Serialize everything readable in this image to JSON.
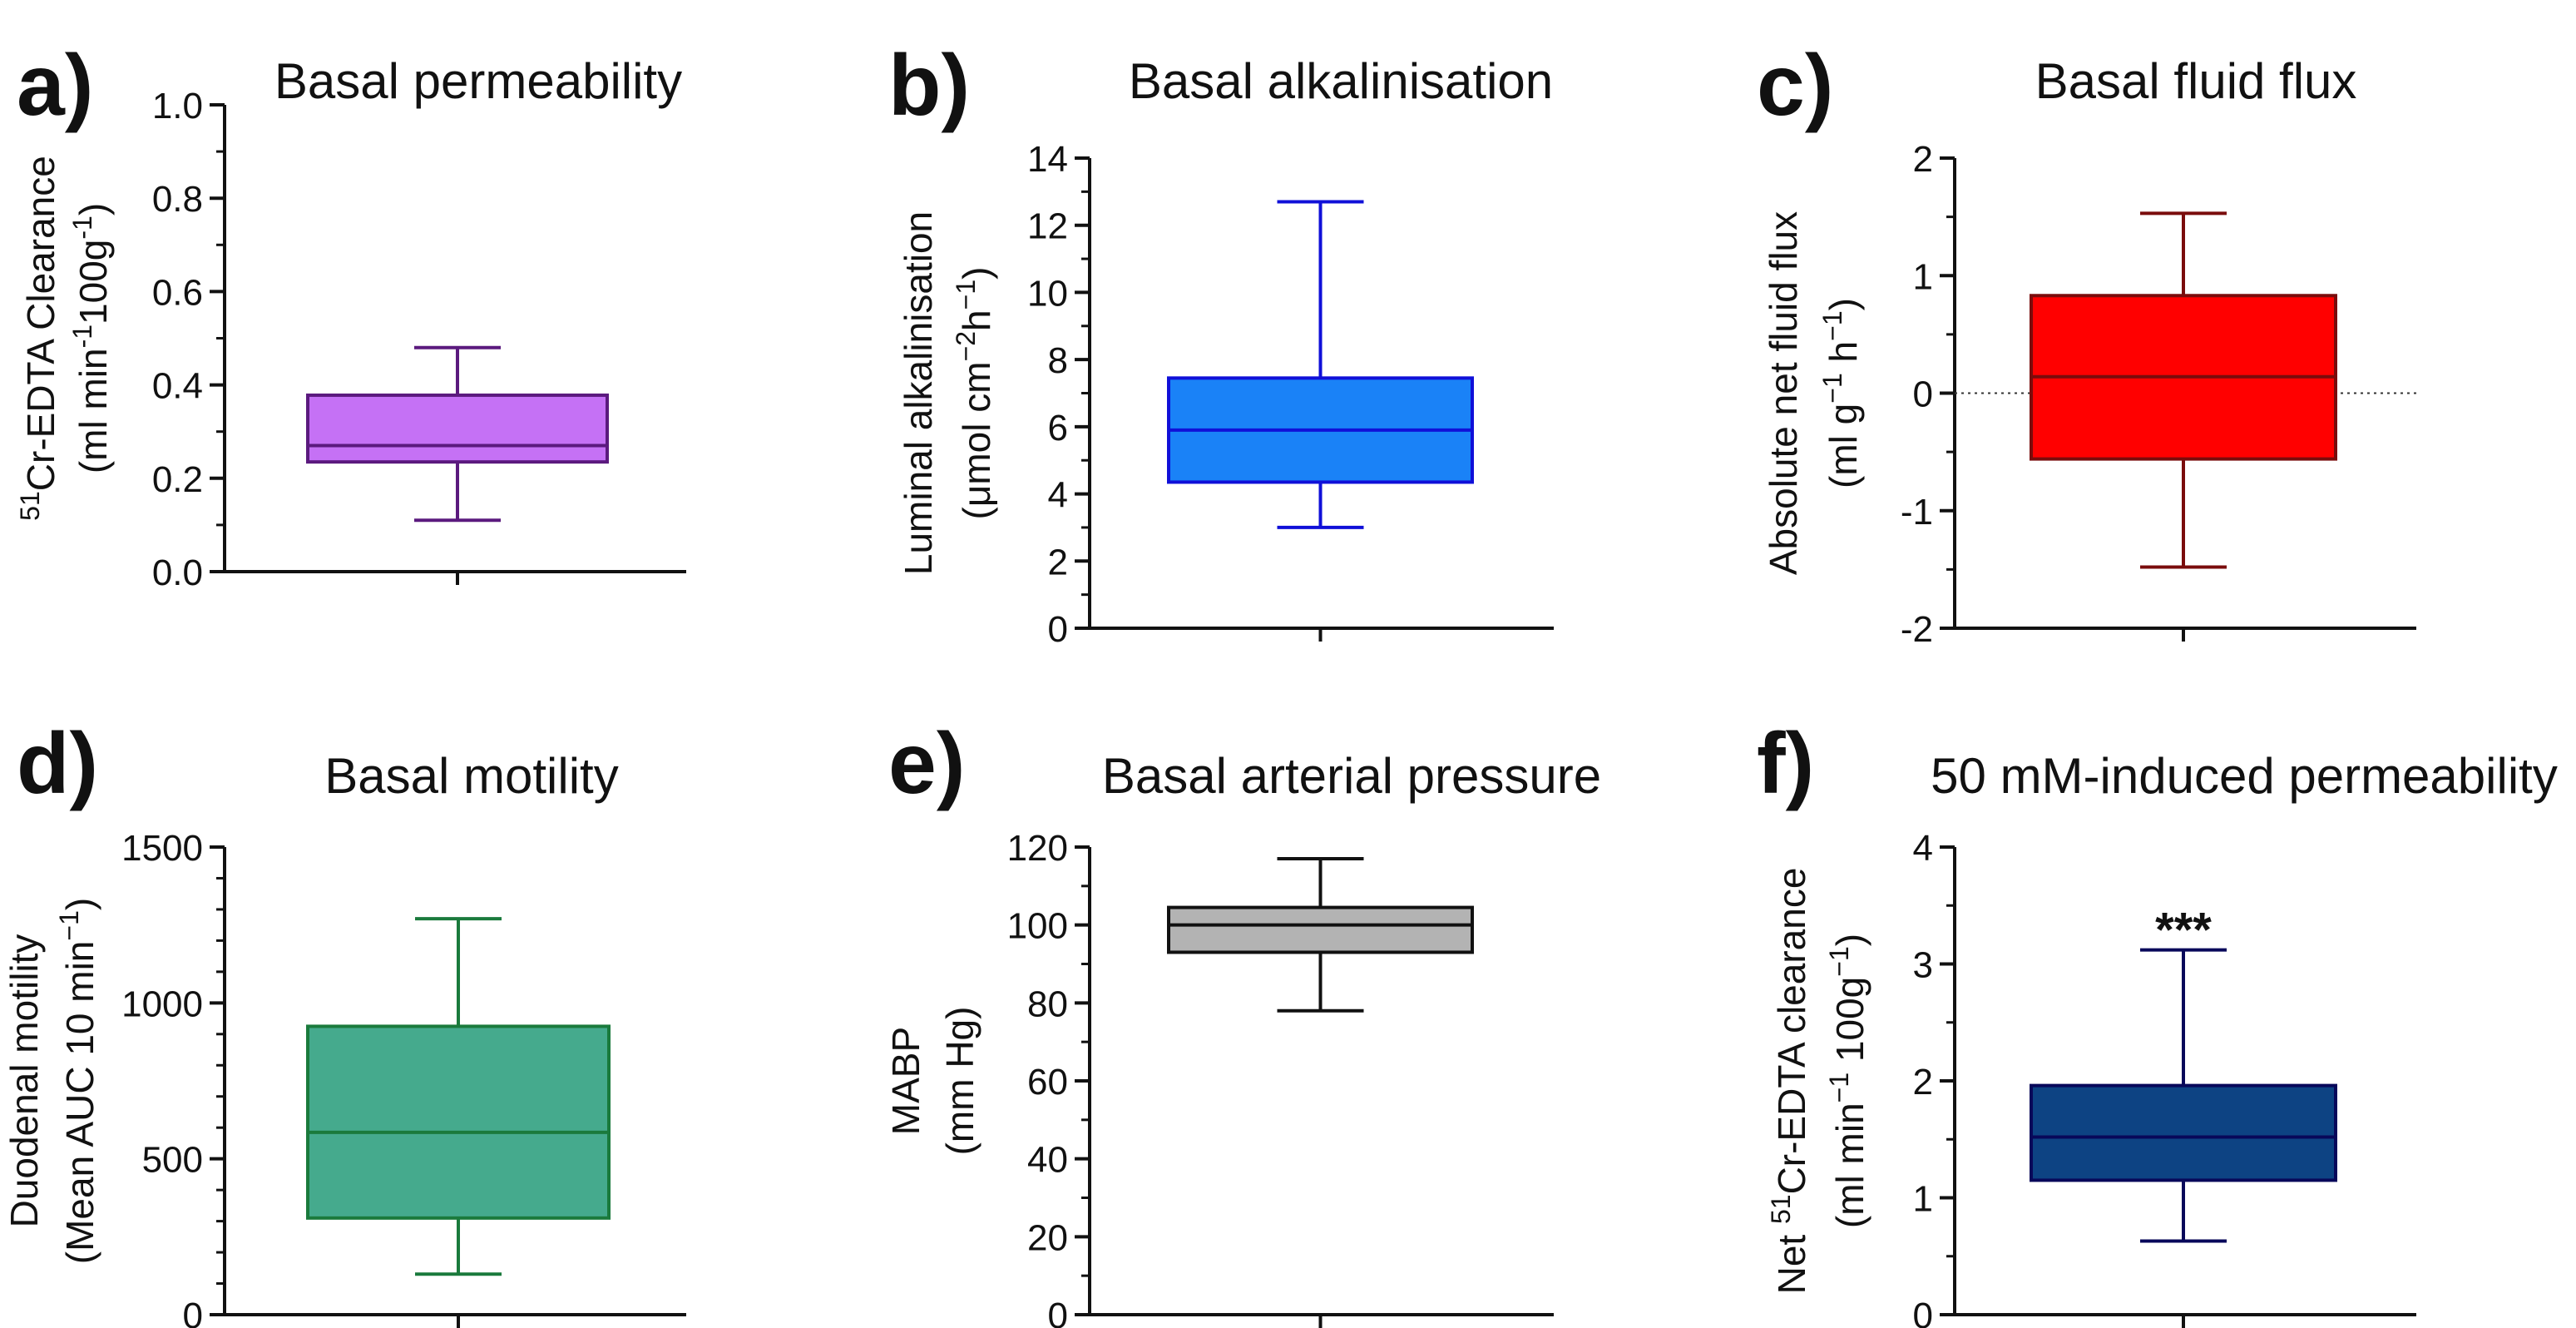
{
  "figure": {
    "background": "#ffffff"
  },
  "chart_data": [
    {
      "panel": "a)",
      "type": "box",
      "title": "Basal permeability",
      "ylabel_lines": [
        [
          {
            "t": "51",
            "sup": true
          },
          {
            "t": "Cr-EDTA Clearance"
          }
        ],
        [
          {
            "t": "(ml min"
          },
          {
            "t": "-1",
            "sup": true
          },
          {
            "t": "100g"
          },
          {
            "t": "-1",
            "sup": true
          },
          {
            "t": ")"
          }
        ]
      ],
      "ylim": [
        0,
        1.0
      ],
      "yticks": [
        "0.0",
        "0.2",
        "0.4",
        "0.6",
        "0.8",
        "1.0"
      ],
      "minor_per_major": 1,
      "box": {
        "min": 0.11,
        "q1": 0.235,
        "median": 0.27,
        "q3": 0.378,
        "max": 0.48
      },
      "fill": "#c571f5",
      "stroke": "#5b1a7e",
      "zero_line": false,
      "annotation": ""
    },
    {
      "panel": "b)",
      "type": "box",
      "title": "Basal alkalinisation",
      "ylabel_lines": [
        [
          {
            "t": "Luminal alkalinisation"
          }
        ],
        [
          {
            "t": "(μmol cm"
          },
          {
            "t": "−2",
            "sup": true
          },
          {
            "t": "h"
          },
          {
            "t": "−1",
            "sup": true
          },
          {
            "t": ")"
          }
        ]
      ],
      "ylim": [
        0,
        14
      ],
      "yticks": [
        "0",
        "2",
        "4",
        "6",
        "8",
        "10",
        "12",
        "14"
      ],
      "minor_per_major": 1,
      "box": {
        "min": 3.0,
        "q1": 4.35,
        "median": 5.9,
        "q3": 7.45,
        "max": 12.7
      },
      "fill": "#1a82f7",
      "stroke": "#1010d8",
      "zero_line": false,
      "annotation": ""
    },
    {
      "panel": "c)",
      "type": "box",
      "title": "Basal fluid flux",
      "ylabel_lines": [
        [
          {
            "t": "Absolute net fluid flux"
          }
        ],
        [
          {
            "t": "(ml g"
          },
          {
            "t": "−1",
            "sup": true
          },
          {
            "t": " h"
          },
          {
            "t": "−1",
            "sup": true
          },
          {
            "t": ")"
          }
        ]
      ],
      "ylim": [
        -2,
        2
      ],
      "yticks": [
        "-2",
        "-1",
        "0",
        "1",
        "2"
      ],
      "minor_per_major": 1,
      "box": {
        "min": -1.48,
        "q1": -0.56,
        "median": 0.14,
        "q3": 0.83,
        "max": 1.53
      },
      "fill": "#ff0000",
      "stroke": "#7a0c0c",
      "zero_line": true,
      "annotation": ""
    },
    {
      "panel": "d)",
      "type": "box",
      "title": "Basal motility",
      "ylabel_lines": [
        [
          {
            "t": "Duodenal motility"
          }
        ],
        [
          {
            "t": "(Mean AUC 10 min"
          },
          {
            "t": "−1",
            "sup": true
          },
          {
            "t": ")"
          }
        ]
      ],
      "ylim": [
        0,
        1500
      ],
      "yticks": [
        "0",
        "500",
        "1000",
        "1500"
      ],
      "minor_per_major": 4,
      "box": {
        "min": 130,
        "q1": 310,
        "median": 585,
        "q3": 925,
        "max": 1270
      },
      "fill": "#45aa8d",
      "stroke": "#1a7a3c",
      "zero_line": false,
      "annotation": ""
    },
    {
      "panel": "e)",
      "type": "box",
      "title": "Basal arterial pressure",
      "ylabel_lines": [
        [
          {
            "t": "MABP"
          }
        ],
        [
          {
            "t": "(mm Hg)"
          }
        ]
      ],
      "ylim": [
        0,
        120
      ],
      "yticks": [
        "0",
        "20",
        "40",
        "60",
        "80",
        "100",
        "120"
      ],
      "minor_per_major": 1,
      "box": {
        "min": 78,
        "q1": 93,
        "median": 100,
        "q3": 104.5,
        "max": 117
      },
      "fill": "#b3b3b3",
      "stroke": "#111111",
      "zero_line": false,
      "annotation": ""
    },
    {
      "panel": "f)",
      "type": "box",
      "title": "50 mM-induced permeability",
      "ylabel_lines": [
        [
          {
            "t": "Net "
          },
          {
            "t": "51",
            "sup": true
          },
          {
            "t": "Cr-EDTA clearance"
          }
        ],
        [
          {
            "t": "(ml min"
          },
          {
            "t": "−1",
            "sup": true
          },
          {
            "t": " 100g"
          },
          {
            "t": "−1",
            "sup": true
          },
          {
            "t": ")"
          }
        ]
      ],
      "ylim": [
        0,
        4
      ],
      "yticks": [
        "0",
        "1",
        "2",
        "3",
        "4"
      ],
      "minor_per_major": 1,
      "box": {
        "min": 0.63,
        "q1": 1.15,
        "median": 1.52,
        "q3": 1.96,
        "max": 3.12
      },
      "fill": "#0d4383",
      "stroke": "#08085a",
      "zero_line": false,
      "annotation": "***"
    }
  ]
}
